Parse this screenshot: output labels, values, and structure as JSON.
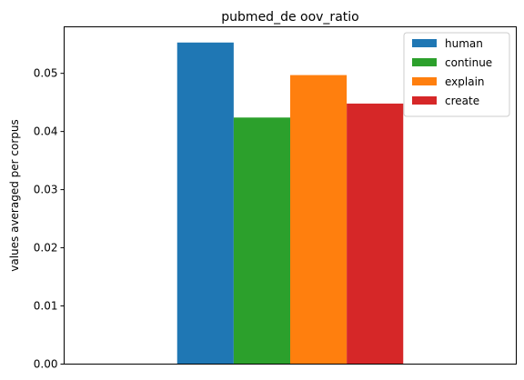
{
  "chart_data": {
    "type": "bar",
    "title": "pubmed_de oov_ratio",
    "xlabel": "",
    "ylabel": "values averaged per corpus",
    "ylim": [
      0,
      0.058
    ],
    "yticks": [
      "0.00",
      "0.01",
      "0.02",
      "0.03",
      "0.04",
      "0.05"
    ],
    "legend_position": "top-right",
    "grid": false,
    "series": [
      {
        "name": "human",
        "values": [
          0.0553
        ],
        "color": "#1f77b4"
      },
      {
        "name": "continue",
        "values": [
          0.0424
        ],
        "color": "#2ca02c"
      },
      {
        "name": "explain",
        "values": [
          0.0497
        ],
        "color": "#ff7f0e"
      },
      {
        "name": "create",
        "values": [
          0.0448
        ],
        "color": "#d62728"
      }
    ]
  }
}
